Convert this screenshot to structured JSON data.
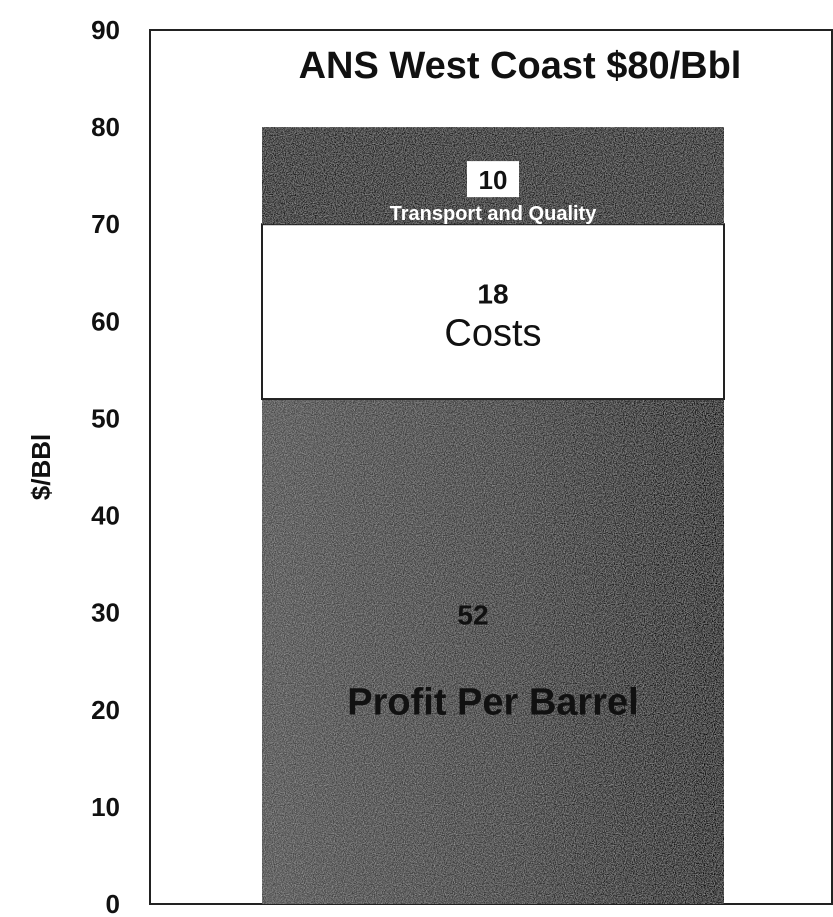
{
  "chart_data": {
    "type": "bar",
    "stacked": true,
    "title": "ANS West Coast $80/Bbl",
    "ylabel": "$/BBl",
    "ylim": [
      0,
      90
    ],
    "yticks": [
      0,
      10,
      20,
      30,
      40,
      50,
      60,
      70,
      80,
      90
    ],
    "grid": false,
    "legend": "none",
    "segments": [
      {
        "value": 52,
        "value_label": "52",
        "label": "Profit Per Barrel",
        "fill": "#2a2a2a",
        "text_color": "#111111"
      },
      {
        "value": 18,
        "value_label": "18",
        "label": "Costs",
        "fill": "#ffffff",
        "text_color": "#111111"
      },
      {
        "value": 10,
        "value_label": "10",
        "label": "Transport and Quality",
        "fill": "#1e1e1e",
        "text_color": "#ffffff"
      }
    ]
  }
}
